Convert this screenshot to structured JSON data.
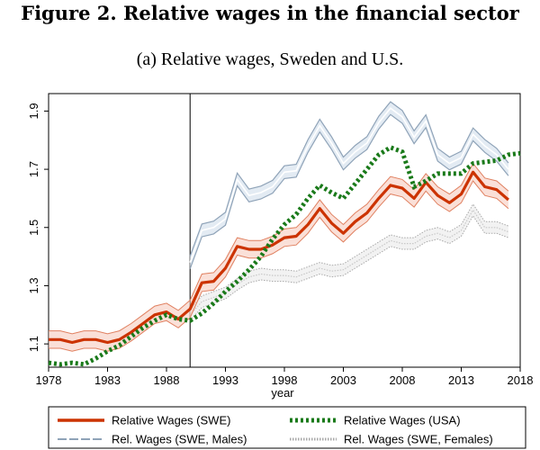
{
  "figure": {
    "title": "Figure 2. Relative wages in the financial sector",
    "subtitle": "(a) Relative wages, Sweden and U.S."
  },
  "chart_data": {
    "type": "line",
    "xlabel": "year",
    "ylabel": "",
    "xlim": [
      1978,
      2018
    ],
    "ylim": [
      1.02,
      1.96
    ],
    "x_ticks": [
      1978,
      1983,
      1988,
      1993,
      1998,
      2003,
      2008,
      2013,
      2018
    ],
    "y_ticks": [
      1.1,
      1.3,
      1.5,
      1.7,
      1.9
    ],
    "y_tick_labels": [
      "1.1",
      "1.3",
      "1.5",
      "1.7",
      "1.9"
    ],
    "vertical_reference_line_year": 1990,
    "x": [
      1978,
      1979,
      1980,
      1981,
      1982,
      1983,
      1984,
      1985,
      1986,
      1987,
      1988,
      1989,
      1990,
      1991,
      1992,
      1993,
      1994,
      1995,
      1996,
      1997,
      1998,
      1999,
      2000,
      2001,
      2002,
      2003,
      2004,
      2005,
      2006,
      2007,
      2008,
      2009,
      2010,
      2011,
      2012,
      2013,
      2014,
      2015,
      2016,
      2017,
      2018
    ],
    "series": [
      {
        "name": "Relative Wages (SWE)",
        "color": "#cc3300",
        "style": "solid-band",
        "values": [
          1.115,
          1.115,
          1.105,
          1.115,
          1.115,
          1.105,
          1.115,
          1.14,
          1.17,
          1.2,
          1.21,
          1.185,
          1.22,
          1.31,
          1.315,
          1.36,
          1.435,
          1.425,
          1.425,
          1.44,
          1.465,
          1.47,
          1.51,
          1.565,
          1.515,
          1.48,
          1.52,
          1.55,
          1.6,
          1.645,
          1.635,
          1.6,
          1.655,
          1.61,
          1.585,
          1.615,
          1.69,
          1.64,
          1.63,
          1.595,
          null
        ]
      },
      {
        "name": "Relative Wages (USA)",
        "color": "#1a7a1a",
        "style": "dotted",
        "values": [
          1.035,
          1.03,
          1.035,
          1.03,
          1.05,
          1.075,
          1.095,
          1.125,
          1.155,
          1.18,
          1.2,
          1.185,
          1.18,
          1.205,
          1.24,
          1.28,
          1.315,
          1.355,
          1.4,
          1.46,
          1.51,
          1.545,
          1.6,
          1.645,
          1.62,
          1.6,
          1.65,
          1.7,
          1.75,
          1.775,
          1.76,
          1.64,
          1.66,
          1.685,
          1.685,
          1.685,
          1.72,
          1.725,
          1.73,
          1.75,
          1.755
        ]
      },
      {
        "name": "Rel. Wages (SWE, Males)",
        "color": "#8fa3b8",
        "style": "dashed-band",
        "values": [
          null,
          null,
          null,
          null,
          null,
          null,
          null,
          null,
          null,
          null,
          null,
          null,
          1.38,
          1.49,
          1.5,
          1.53,
          1.665,
          1.61,
          1.62,
          1.64,
          1.69,
          1.695,
          1.78,
          1.85,
          1.79,
          1.72,
          1.76,
          1.79,
          1.86,
          1.91,
          1.88,
          1.81,
          1.865,
          1.75,
          1.72,
          1.74,
          1.82,
          1.78,
          1.75,
          1.7,
          null
        ]
      },
      {
        "name": "Rel. Wages (SWE, Females)",
        "color": "#a8a8a8",
        "style": "dotted-band",
        "values": [
          null,
          null,
          null,
          null,
          null,
          null,
          null,
          null,
          null,
          null,
          null,
          null,
          1.2,
          1.245,
          1.26,
          1.275,
          1.305,
          1.33,
          1.34,
          1.335,
          1.335,
          1.33,
          1.345,
          1.36,
          1.35,
          1.355,
          1.38,
          1.405,
          1.43,
          1.455,
          1.445,
          1.445,
          1.47,
          1.48,
          1.465,
          1.49,
          1.56,
          1.5,
          1.5,
          1.485,
          null
        ]
      }
    ],
    "legend": [
      {
        "label": "Relative Wages (SWE)",
        "series": 0
      },
      {
        "label": "Relative Wages (USA)",
        "series": 1
      },
      {
        "label": "Rel. Wages (SWE, Males)",
        "series": 2
      },
      {
        "label": "Rel. Wages (SWE, Females)",
        "series": 3
      }
    ],
    "legend_position": "bottom"
  }
}
